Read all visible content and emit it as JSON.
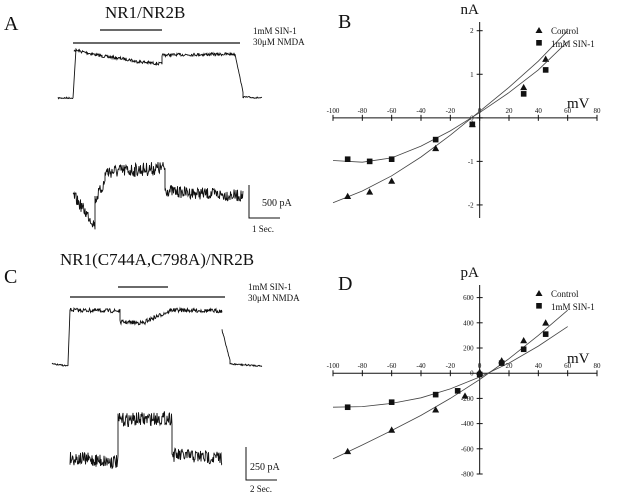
{
  "panels": {
    "A": {
      "letter": "A",
      "title": "NR1/NR2B",
      "drug_label": "1mM SIN-1",
      "agonist_label": "30μM NMDA",
      "scale_current": "500 pA",
      "scale_time": "1 Sec."
    },
    "C": {
      "letter": "C",
      "title": "NR1(C744A,C798A)/NR2B",
      "drug_label": "1mM SIN-1",
      "agonist_label": "30μM NMDA",
      "scale_current": "250 pA",
      "scale_time": "2 Sec."
    }
  },
  "chart_data": [
    {
      "panel": "B",
      "type": "scatter",
      "title": "",
      "ylabel": "nA",
      "xlabel": "mV",
      "xlim": [
        -100,
        80
      ],
      "ylim": [
        -2.3,
        2.2
      ],
      "x_ticks": [
        -100,
        -80,
        -60,
        -40,
        -20,
        0,
        20,
        40,
        60,
        80
      ],
      "y_ticks": [
        -2,
        -1,
        0,
        1,
        2
      ],
      "x_tick_labels": [
        "-100",
        "-80",
        "-60",
        "-40",
        "-20",
        "0",
        "20",
        "40",
        "60",
        "80"
      ],
      "y_tick_labels": [
        "-2",
        "-1",
        "0",
        "1",
        "2"
      ],
      "legend_position": "top-right",
      "series": [
        {
          "name": "Control",
          "marker": "triangle",
          "x": [
            -90,
            -75,
            -60,
            -30,
            -5,
            30,
            45
          ],
          "y": [
            -1.8,
            -1.7,
            -1.45,
            -0.7,
            -0.15,
            0.7,
            1.35
          ],
          "fit_x": [
            -100,
            -80,
            -60,
            -40,
            -20,
            0,
            20,
            40,
            60
          ],
          "fit_y": [
            -1.95,
            -1.68,
            -1.33,
            -0.9,
            -0.4,
            0.15,
            0.7,
            1.3,
            2.0
          ]
        },
        {
          "name": "1mM SIN-1",
          "marker": "square",
          "x": [
            -90,
            -75,
            -60,
            -30,
            -5,
            30,
            45
          ],
          "y": [
            -0.95,
            -1.0,
            -0.95,
            -0.5,
            -0.15,
            0.55,
            1.1
          ],
          "fit_x": [
            -100,
            -80,
            -60,
            -40,
            -20,
            0,
            20,
            40,
            60
          ],
          "fit_y": [
            -0.98,
            -1.02,
            -0.92,
            -0.65,
            -0.3,
            0.12,
            0.58,
            1.1,
            1.75
          ]
        }
      ]
    },
    {
      "panel": "D",
      "type": "scatter",
      "title": "",
      "ylabel": "pA",
      "xlabel": "mV",
      "xlim": [
        -100,
        80
      ],
      "ylim": [
        -800,
        700
      ],
      "x_ticks": [
        -100,
        -80,
        -60,
        -40,
        -20,
        0,
        20,
        40,
        60,
        80
      ],
      "y_ticks": [
        -800,
        -600,
        -400,
        -200,
        0,
        200,
        400,
        600
      ],
      "x_tick_labels": [
        "-100",
        "-80",
        "-60",
        "-40",
        "-20",
        "0",
        "20",
        "40",
        "60",
        "80"
      ],
      "y_tick_labels": [
        "-800",
        "-600",
        "-400",
        "-200",
        "0",
        "200",
        "400",
        "600"
      ],
      "legend_position": "top-right",
      "series": [
        {
          "name": "Control",
          "marker": "triangle",
          "x": [
            -90,
            -60,
            -30,
            -10,
            0,
            15,
            30,
            45
          ],
          "y": [
            -620,
            -450,
            -290,
            -180,
            10,
            100,
            260,
            400
          ],
          "fit_x": [
            -100,
            -80,
            -60,
            -40,
            -20,
            0,
            20,
            40,
            60
          ],
          "fit_y": [
            -680,
            -570,
            -455,
            -335,
            -200,
            -50,
            115,
            300,
            500
          ]
        },
        {
          "name": "1mM SIN-1",
          "marker": "square",
          "x": [
            -90,
            -60,
            -30,
            -15,
            0,
            15,
            30,
            45
          ],
          "y": [
            -270,
            -230,
            -170,
            -140,
            -10,
            80,
            190,
            310
          ],
          "fit_x": [
            -100,
            -80,
            -60,
            -40,
            -20,
            0,
            20,
            40,
            60
          ],
          "fit_y": [
            -270,
            -265,
            -240,
            -195,
            -125,
            -30,
            80,
            215,
            370
          ]
        }
      ]
    }
  ]
}
